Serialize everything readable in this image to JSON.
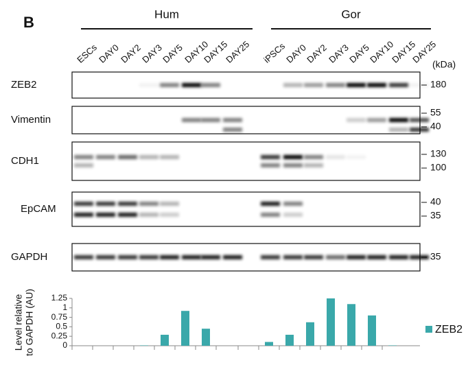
{
  "panel_label": "B",
  "groups": [
    {
      "name": "Hum",
      "lanes": [
        "ESCs",
        "DAY0",
        "DAY2",
        "DAY3",
        "DAY5",
        "DAY10",
        "DAY15",
        "DAY25"
      ]
    },
    {
      "name": "Gor",
      "lanes": [
        "iPSCs",
        "DAY0",
        "DAY2",
        "DAY3",
        "DAY5",
        "DAY10",
        "DAY15",
        "DAY25"
      ]
    }
  ],
  "kda_label": "(kDa)",
  "blots": [
    {
      "name": "ZEB2",
      "markers": [
        "180"
      ]
    },
    {
      "name": "Vimentin",
      "markers": [
        "55",
        "40"
      ]
    },
    {
      "name": "CDH1",
      "markers": [
        "130",
        "100"
      ]
    },
    {
      "name": "EpCAM",
      "markers": [
        "40",
        "35"
      ]
    },
    {
      "name": "GAPDH",
      "markers": [
        "35"
      ]
    }
  ],
  "chart_data": {
    "type": "bar",
    "ylabel": [
      "Level relative",
      "to GAPDH (AU)"
    ],
    "categories": [
      null,
      null,
      null,
      null,
      null,
      null,
      null,
      null,
      null,
      null,
      null,
      null,
      null,
      null,
      null,
      null
    ],
    "series": [
      {
        "name": "ZEB2",
        "color": "#3aa8aa",
        "values": [
          0,
          0,
          0,
          0.01,
          0.29,
          0.92,
          0.45,
          0,
          0,
          0.1,
          0.29,
          0.62,
          1.25,
          1.1,
          0.8,
          0.01
        ]
      }
    ],
    "ylim": [
      0,
      1.25
    ],
    "yticks": [
      0,
      0.25,
      0.5,
      0.75,
      1,
      1.25
    ],
    "legend": "right"
  }
}
